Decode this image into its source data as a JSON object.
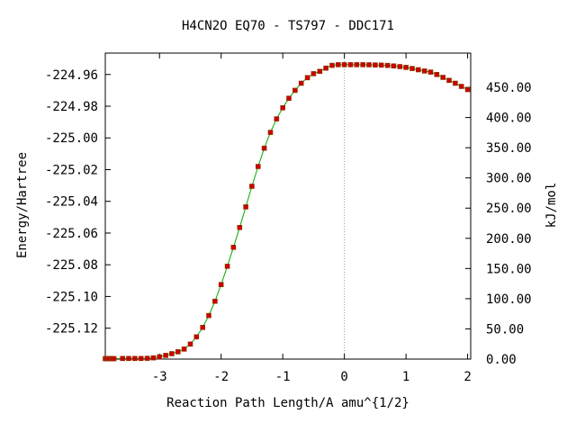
{
  "chart_data": {
    "type": "line",
    "title": "H4CN2O   EQ70 - TS797 - DDC171",
    "xlabel": "Reaction Path Length/A amu^{1/2}",
    "ylabel": "Energy/Hartree",
    "y2label": "kJ/mol",
    "xlim": [
      -3.88,
      2.05
    ],
    "ylim": [
      -225.1395,
      -224.9465
    ],
    "y2lim": [
      0,
      506.7
    ],
    "x_ticks": [
      -3,
      -2,
      -1,
      0,
      1,
      2
    ],
    "x_tick_labels": [
      "-3",
      "-2",
      "-1",
      "0",
      "1",
      "2"
    ],
    "y_ticks": [
      -224.96,
      -224.98,
      -225.0,
      -225.02,
      -225.04,
      -225.06,
      -225.08,
      -225.1,
      -225.12
    ],
    "y_tick_labels": [
      "-224.96",
      "-224.98",
      "-225.00",
      "-225.02",
      "-225.04",
      "-225.06",
      "-225.08",
      "-225.10",
      "-225.12"
    ],
    "y2_ticks": [
      0,
      50,
      100,
      150,
      200,
      250,
      300,
      350,
      400,
      450
    ],
    "y2_tick_labels": [
      "0.00",
      "50.00",
      "100.00",
      "150.00",
      "200.00",
      "250.00",
      "300.00",
      "350.00",
      "400.00",
      "450.00"
    ],
    "ts_x": 0,
    "line_color": "#00aa00",
    "marker_color": "#cc0000",
    "vline_color": "#999999",
    "series": [
      {
        "x": [
          -3.88,
          -3.86,
          -3.84,
          -3.82,
          -3.8,
          -3.78,
          -3.76,
          -3.74,
          -3.6,
          -3.5,
          -3.4,
          -3.3,
          -3.2,
          -3.1,
          -3.0,
          -2.9,
          -2.8,
          -2.7,
          -2.6,
          -2.5,
          -2.4,
          -2.3,
          -2.2,
          -2.1,
          -2.0,
          -1.9,
          -1.8,
          -1.7,
          -1.6,
          -1.5,
          -1.4,
          -1.3,
          -1.2,
          -1.1,
          -1.0,
          -0.9,
          -0.8,
          -0.7,
          -0.6,
          -0.5,
          -0.4,
          -0.3,
          -0.2,
          -0.1,
          0.0,
          0.1,
          0.2,
          0.3,
          0.4,
          0.5,
          0.6,
          0.7,
          0.8,
          0.9,
          1.0,
          1.1,
          1.2,
          1.3,
          1.4,
          1.5,
          1.6,
          1.7,
          1.8,
          1.9,
          2.0
        ],
        "y": [
          -225.1392,
          -225.1392,
          -225.1392,
          -225.1392,
          -225.1392,
          -225.1392,
          -225.1392,
          -225.1392,
          -225.1391,
          -225.1391,
          -225.1391,
          -225.1391,
          -225.139,
          -225.1387,
          -225.1381,
          -225.1372,
          -225.1361,
          -225.1349,
          -225.1332,
          -225.13,
          -225.1255,
          -225.1195,
          -225.112,
          -225.103,
          -225.0925,
          -225.081,
          -225.069,
          -225.0565,
          -225.0435,
          -225.0305,
          -225.018,
          -225.0065,
          -224.9965,
          -224.988,
          -224.981,
          -224.975,
          -224.97,
          -224.9655,
          -224.962,
          -224.9595,
          -224.958,
          -224.956,
          -224.9542,
          -224.9538,
          -224.9538,
          -224.9538,
          -224.9538,
          -224.9538,
          -224.9539,
          -224.954,
          -224.9541,
          -224.9543,
          -224.9546,
          -224.955,
          -224.9555,
          -224.9562,
          -224.957,
          -224.9578,
          -224.9585,
          -224.96,
          -224.9618,
          -224.9637,
          -224.9655,
          -224.9675,
          -224.9695
        ]
      }
    ]
  }
}
